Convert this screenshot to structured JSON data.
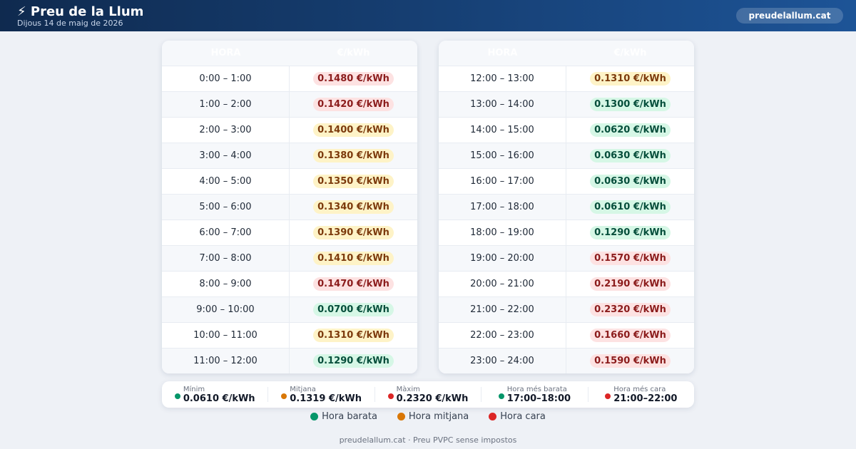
{
  "header": {
    "title": "⚡ Preu de la Llum",
    "date": "Dijous 14 de maig de 2026",
    "site": "preudelallum.cat"
  },
  "tables": [
    {
      "columns": [
        "HORA",
        "€/kWh"
      ],
      "rows": [
        {
          "hour": "0:00 – 1:00",
          "price": "0.1480 €/kWh",
          "color": "red"
        },
        {
          "hour": "1:00 – 2:00",
          "price": "0.1420 €/kWh",
          "color": "red"
        },
        {
          "hour": "2:00 – 3:00",
          "price": "0.1400 €/kWh",
          "color": "amber"
        },
        {
          "hour": "3:00 – 4:00",
          "price": "0.1380 €/kWh",
          "color": "amber"
        },
        {
          "hour": "4:00 – 5:00",
          "price": "0.1350 €/kWh",
          "color": "amber"
        },
        {
          "hour": "5:00 – 6:00",
          "price": "0.1340 €/kWh",
          "color": "amber"
        },
        {
          "hour": "6:00 – 7:00",
          "price": "0.1390 €/kWh",
          "color": "amber"
        },
        {
          "hour": "7:00 – 8:00",
          "price": "0.1410 €/kWh",
          "color": "amber"
        },
        {
          "hour": "8:00 – 9:00",
          "price": "0.1470 €/kWh",
          "color": "red"
        },
        {
          "hour": "9:00 – 10:00",
          "price": "0.0700 €/kWh",
          "color": "green"
        },
        {
          "hour": "10:00 – 11:00",
          "price": "0.1310 €/kWh",
          "color": "amber"
        },
        {
          "hour": "11:00 – 12:00",
          "price": "0.1290 €/kWh",
          "color": "green"
        }
      ]
    },
    {
      "columns": [
        "HORA",
        "€/kWh"
      ],
      "rows": [
        {
          "hour": "12:00 – 13:00",
          "price": "0.1310 €/kWh",
          "color": "amber"
        },
        {
          "hour": "13:00 – 14:00",
          "price": "0.1300 €/kWh",
          "color": "green"
        },
        {
          "hour": "14:00 – 15:00",
          "price": "0.0620 €/kWh",
          "color": "green"
        },
        {
          "hour": "15:00 – 16:00",
          "price": "0.0630 €/kWh",
          "color": "green"
        },
        {
          "hour": "16:00 – 17:00",
          "price": "0.0630 €/kWh",
          "color": "green"
        },
        {
          "hour": "17:00 – 18:00",
          "price": "0.0610 €/kWh",
          "color": "green"
        },
        {
          "hour": "18:00 – 19:00",
          "price": "0.1290 €/kWh",
          "color": "green"
        },
        {
          "hour": "19:00 – 20:00",
          "price": "0.1570 €/kWh",
          "color": "red"
        },
        {
          "hour": "20:00 – 21:00",
          "price": "0.2190 €/kWh",
          "color": "red"
        },
        {
          "hour": "21:00 – 22:00",
          "price": "0.2320 €/kWh",
          "color": "red"
        },
        {
          "hour": "22:00 – 23:00",
          "price": "0.1660 €/kWh",
          "color": "red"
        },
        {
          "hour": "23:00 – 24:00",
          "price": "0.1590 €/kWh",
          "color": "red"
        }
      ]
    }
  ],
  "stats": [
    {
      "label": "Mínim",
      "value": "0.0610 €/kWh",
      "color": "green"
    },
    {
      "label": "Mitjana",
      "value": "0.1319 €/kWh",
      "color": "orange"
    },
    {
      "label": "Màxim",
      "value": "0.2320 €/kWh",
      "color": "red"
    },
    {
      "label": "Hora més barata",
      "value": "17:00–18:00",
      "color": "green"
    },
    {
      "label": "Hora més cara",
      "value": "21:00–22:00",
      "color": "red"
    }
  ],
  "legend": [
    {
      "label": "Hora barata",
      "color": "green"
    },
    {
      "label": "Hora mitjana",
      "color": "orange"
    },
    {
      "label": "Hora cara",
      "color": "red"
    }
  ],
  "footer": "preudelallum.cat · Preu PVPC sense impostos"
}
